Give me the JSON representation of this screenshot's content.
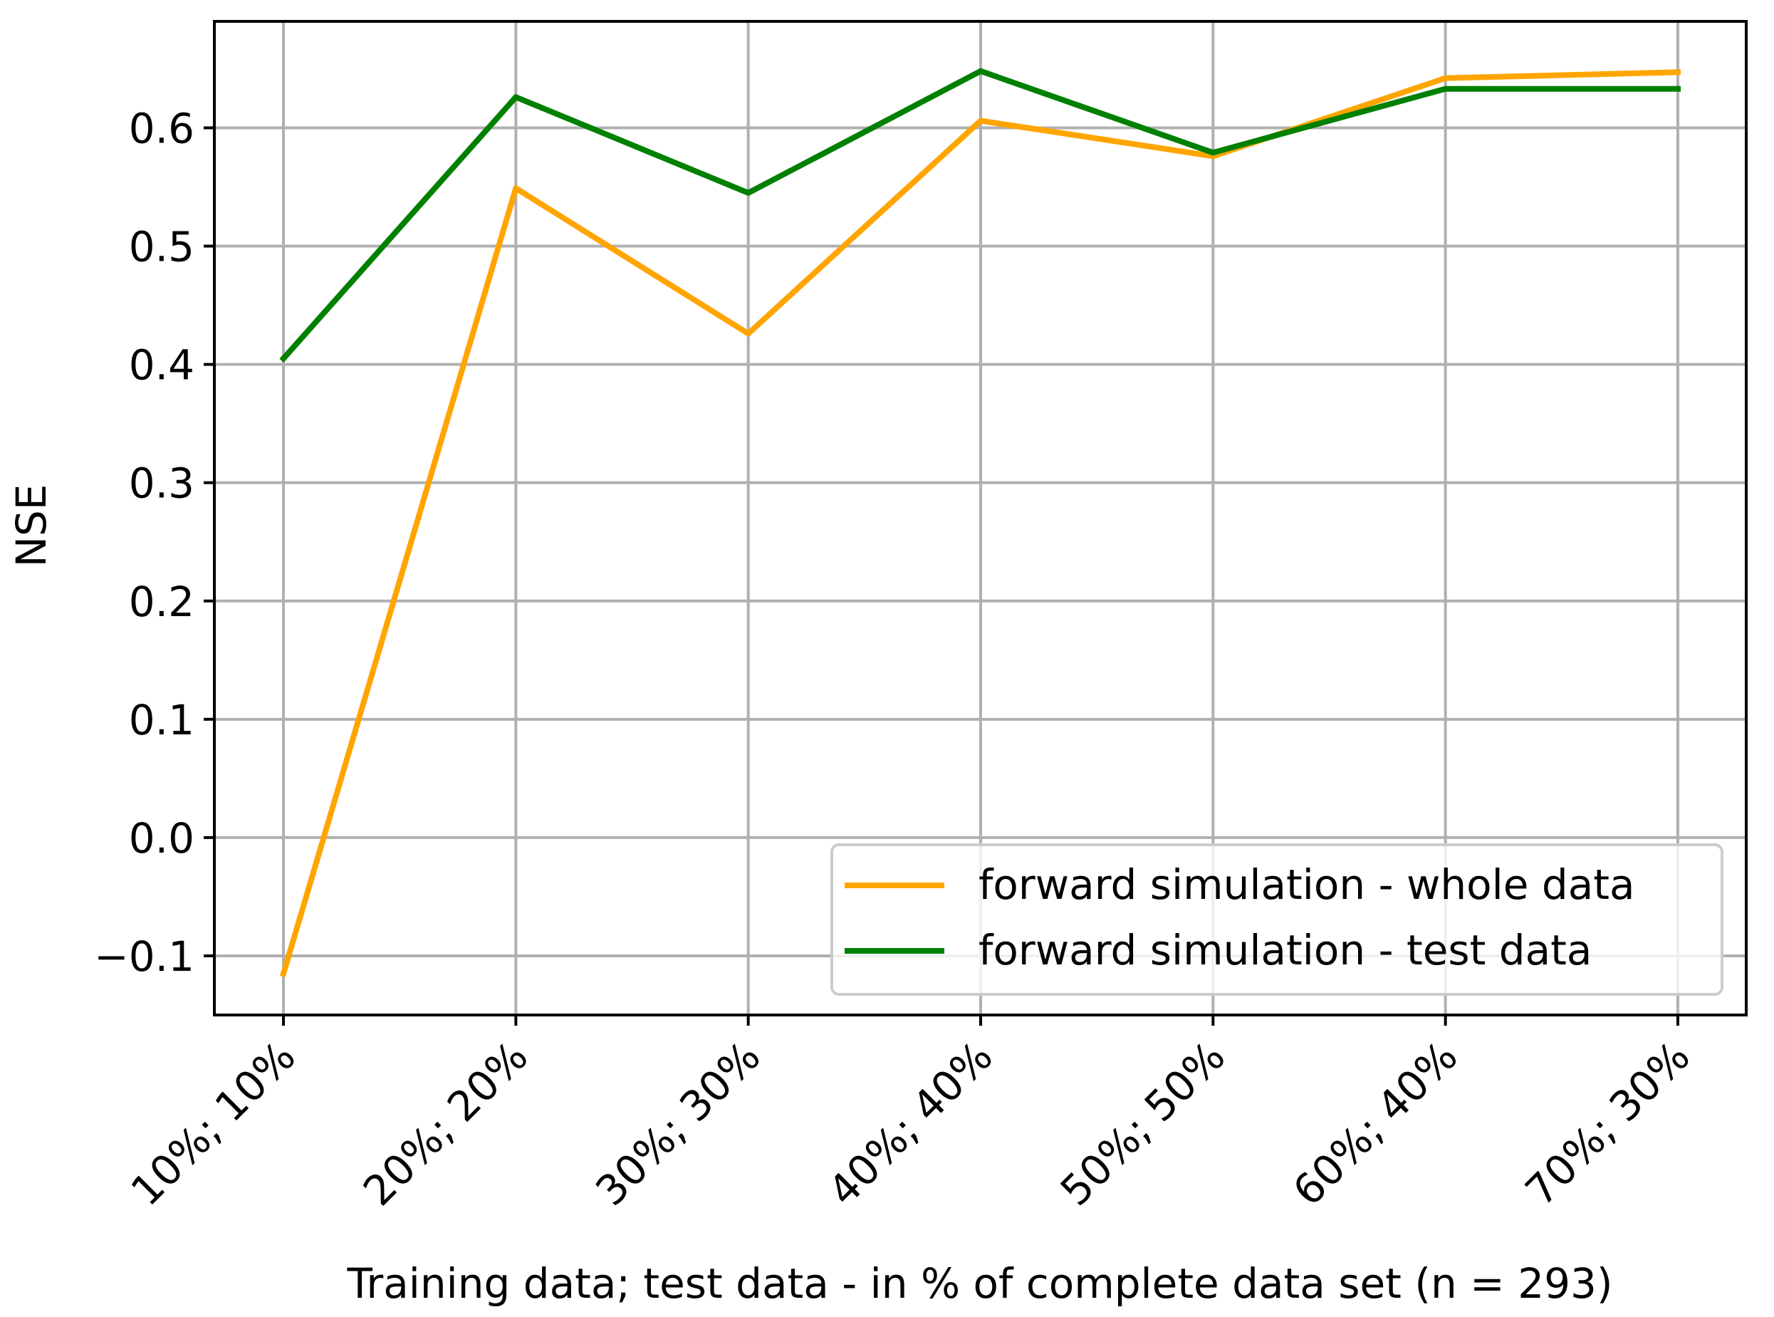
{
  "chart_data": {
    "type": "line",
    "xlabel": "Training data; test data - in % of complete data set (n = 293)",
    "ylabel": "NSE",
    "categories": [
      "10%; 10%",
      "20%; 20%",
      "30%; 30%",
      "40%; 40%",
      "50%; 50%",
      "60%; 40%",
      "70%; 30%"
    ],
    "ylim": [
      -0.15,
      0.69
    ],
    "yticks": [
      -0.1,
      0.0,
      0.1,
      0.2,
      0.3,
      0.4,
      0.5,
      0.6
    ],
    "ytick_labels": [
      "−0.1",
      "0.0",
      "0.1",
      "0.2",
      "0.3",
      "0.4",
      "0.5",
      "0.6"
    ],
    "grid": true,
    "legend_position": "lower-right",
    "series": [
      {
        "name": "forward simulation - whole data",
        "color": "#FFA500",
        "values": [
          -0.115,
          0.549,
          0.426,
          0.606,
          0.576,
          0.642,
          0.647
        ]
      },
      {
        "name": "forward simulation - test data",
        "color": "#008000",
        "values": [
          0.405,
          0.626,
          0.545,
          0.648,
          0.579,
          0.633,
          0.633
        ]
      }
    ]
  }
}
